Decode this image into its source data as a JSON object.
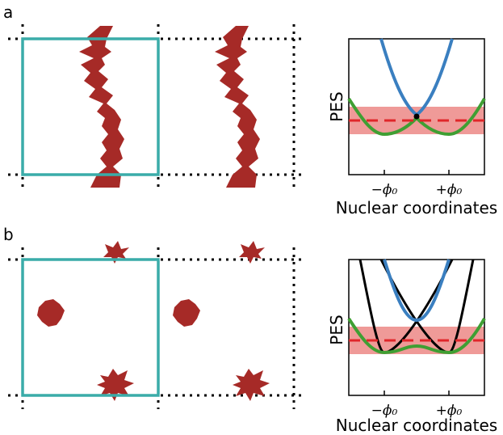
{
  "panels": [
    {
      "label": "a",
      "plot": {
        "ylabel": "PES",
        "xlabel": "Nuclear coordinates",
        "xticks": [
          "−ϕ₀",
          "+ϕ₀"
        ]
      }
    },
    {
      "label": "b",
      "plot": {
        "ylabel": "PES",
        "xlabel": "Nuclear coordinates",
        "xticks": [
          "−ϕ₀",
          "+ϕ₀"
        ]
      }
    }
  ],
  "colors": {
    "cell": "#3aaca9",
    "blob": "#a62a27",
    "upper_curve": "#3a7fc0",
    "lower_curve": "#3f9f33",
    "diabatic": "#000000",
    "band": "#ef9a98",
    "dashed": "#e0262a"
  }
}
